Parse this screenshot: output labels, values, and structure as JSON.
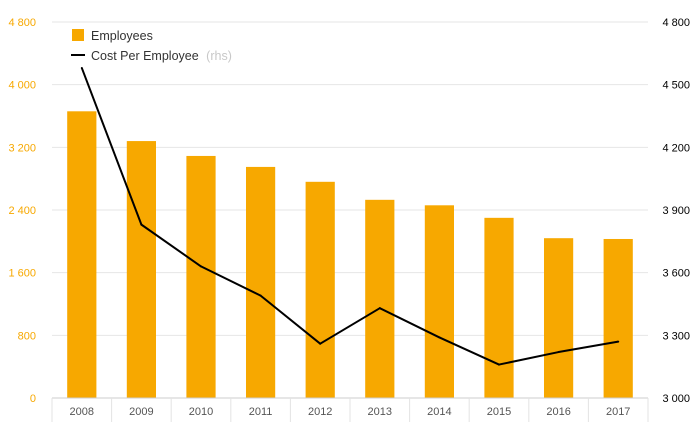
{
  "chart_data": {
    "type": "bar+line",
    "categories": [
      "2008",
      "2009",
      "2010",
      "2011",
      "2012",
      "2013",
      "2014",
      "2015",
      "2016",
      "2017"
    ],
    "series": [
      {
        "name": "Employees",
        "type": "bar",
        "axis": "left",
        "color": "#f7a800",
        "values": [
          3660,
          3280,
          3090,
          2950,
          2760,
          2530,
          2460,
          2300,
          2040,
          2030
        ]
      },
      {
        "name": "Cost Per Employee",
        "name_suffix": "(rhs)",
        "type": "line",
        "axis": "right",
        "color": "#000000",
        "values": [
          4580,
          3830,
          3630,
          3490,
          3260,
          3430,
          3290,
          3160,
          3220,
          3270
        ]
      }
    ],
    "y_left": {
      "ylim": [
        0,
        4800
      ],
      "ticks": [
        0,
        800,
        1600,
        2400,
        3200,
        4000,
        4800
      ],
      "tick_labels": [
        "0",
        "800",
        "1 600",
        "2 400",
        "3 200",
        "4 000",
        "4 800"
      ],
      "color": "#f7a800"
    },
    "y_right": {
      "ylim": [
        3000,
        4800
      ],
      "ticks": [
        3000,
        3300,
        3600,
        3900,
        4200,
        4500,
        4800
      ],
      "tick_labels": [
        "3 000",
        "3 300",
        "3 600",
        "3 900",
        "4 200",
        "4 500",
        "4 800"
      ],
      "color": "#000000"
    },
    "legend_position": "top-left",
    "grid": true
  }
}
